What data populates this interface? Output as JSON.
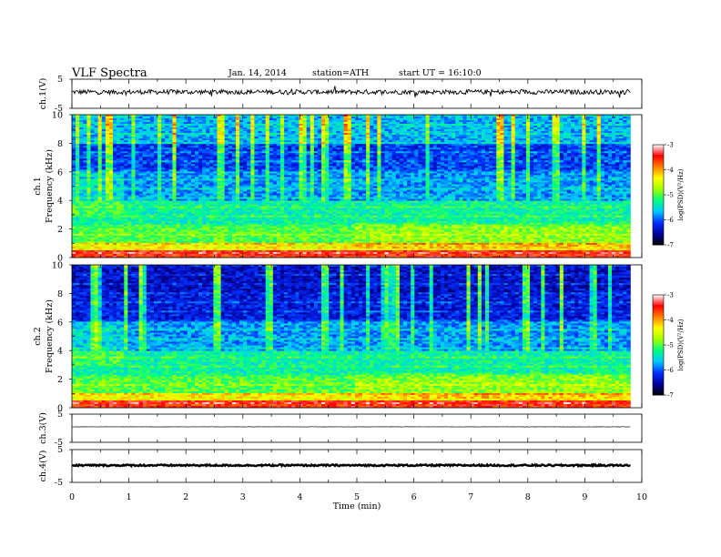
{
  "header": {
    "title": "VLF Spectra",
    "date": "Jan. 14, 2014",
    "station": "station=ATH",
    "start": "start UT =  16:10:0"
  },
  "chart_data": [
    {
      "type": "line",
      "name": "ch1-waveform",
      "ylabel": "ch.1(V)",
      "ylim": [
        -5,
        5
      ],
      "yticks": [
        "5",
        "-5"
      ],
      "baseline": 0.6,
      "noise_amplitude": 0.8
    },
    {
      "type": "heatmap",
      "name": "ch1-spectrogram",
      "ylabel_channel": "ch.1",
      "ylabel": "Frequency (kHz)",
      "ylim": [
        0,
        10
      ],
      "yticks": [
        "0",
        "2",
        "4",
        "6",
        "8",
        "10"
      ],
      "colorbar": {
        "label": "log(PSD)(V²/Hz)",
        "range": [
          -7,
          -3
        ],
        "ticks": [
          "-3",
          "-4",
          "-5",
          "-6",
          "-7"
        ],
        "colors": [
          "#000000",
          "#0000a0",
          "#0030ff",
          "#00c8ff",
          "#00ff80",
          "#a0ff00",
          "#ffff00",
          "#ff8000",
          "#ff0000",
          "#ffffff"
        ]
      }
    },
    {
      "type": "heatmap",
      "name": "ch2-spectrogram",
      "ylabel_channel": "ch.2",
      "ylabel": "Frequency (kHz)",
      "ylim": [
        0,
        10
      ],
      "yticks": [
        "0",
        "2",
        "4",
        "6",
        "8",
        "10"
      ],
      "colorbar": {
        "label": "log(PSD)(V²/Hz)",
        "range": [
          -7,
          -3
        ],
        "ticks": [
          "-3",
          "-4",
          "-5",
          "-6",
          "-7"
        ],
        "colors": [
          "#000000",
          "#0000a0",
          "#0030ff",
          "#00c8ff",
          "#00ff80",
          "#a0ff00",
          "#ffff00",
          "#ff8000",
          "#ff0000",
          "#ffffff"
        ]
      }
    },
    {
      "type": "line",
      "name": "ch3-waveform",
      "ylabel": "ch.3(V)",
      "ylim": [
        -5,
        5
      ],
      "yticks": [
        "5",
        "-5"
      ],
      "baseline": 0.5,
      "noise_amplitude": 0.05
    },
    {
      "type": "line",
      "name": "ch4-waveform",
      "ylabel": "ch.4(V)",
      "ylim": [
        -5,
        5
      ],
      "yticks": [
        "5",
        "-5"
      ],
      "baseline": 0.2,
      "noise_amplitude": 0.25
    }
  ],
  "xaxis": {
    "label": "Time (min)",
    "xlim": [
      0,
      10
    ],
    "data_end": 9.8,
    "ticks": [
      "0",
      "1",
      "2",
      "3",
      "4",
      "5",
      "6",
      "7",
      "8",
      "9",
      "10"
    ]
  }
}
